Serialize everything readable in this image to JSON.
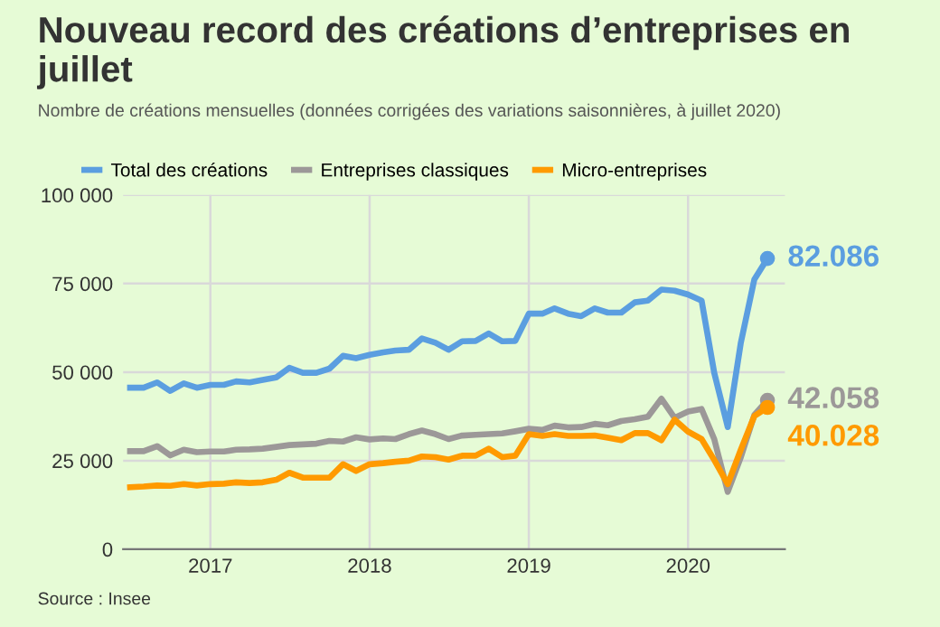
{
  "chart_data": {
    "type": "line",
    "title": "Nouveau record des créations d’entreprises en juillet",
    "subtitle": "Nombre de créations mensuelles (données corrigées des variations saisonnières, à juillet 2020)",
    "x": [
      "2016-07",
      "2016-08",
      "2016-09",
      "2016-10",
      "2016-11",
      "2016-12",
      "2017-01",
      "2017-02",
      "2017-03",
      "2017-04",
      "2017-05",
      "2017-06",
      "2017-07",
      "2017-08",
      "2017-09",
      "2017-10",
      "2017-11",
      "2017-12",
      "2018-01",
      "2018-02",
      "2018-03",
      "2018-04",
      "2018-05",
      "2018-06",
      "2018-07",
      "2018-08",
      "2018-09",
      "2018-10",
      "2018-11",
      "2018-12",
      "2019-01",
      "2019-02",
      "2019-03",
      "2019-04",
      "2019-05",
      "2019-06",
      "2019-07",
      "2019-08",
      "2019-09",
      "2019-10",
      "2019-11",
      "2019-12",
      "2020-01",
      "2020-02",
      "2020-03",
      "2020-04",
      "2020-05",
      "2020-06",
      "2020-07"
    ],
    "series": [
      {
        "name": "Total des créations",
        "color": "#5b9ee0",
        "values": [
          45600,
          45600,
          47100,
          44700,
          46800,
          45600,
          46400,
          46400,
          47400,
          47100,
          47800,
          48500,
          51200,
          49800,
          49800,
          51000,
          54600,
          53900,
          54900,
          55600,
          56100,
          56300,
          59500,
          58300,
          56300,
          58700,
          58800,
          60900,
          58700,
          58800,
          66500,
          66500,
          68000,
          66500,
          65800,
          68000,
          66800,
          66800,
          69700,
          70200,
          73300,
          73000,
          71900,
          70200,
          49800,
          34500,
          58300,
          76200,
          82086
        ],
        "value_labels": [
          null,
          null,
          null,
          null,
          null,
          null,
          null,
          null,
          null,
          null,
          null,
          null,
          null,
          null,
          null,
          null,
          null,
          null,
          null,
          null,
          null,
          null,
          null,
          null,
          null,
          null,
          null,
          null,
          null,
          null,
          null,
          null,
          null,
          null,
          null,
          null,
          null,
          null,
          null,
          null,
          null,
          null,
          null,
          null,
          null,
          null,
          null,
          null,
          "82.086"
        ]
      },
      {
        "name": "Entreprises classiques",
        "color": "#9c9898",
        "values": [
          27700,
          27700,
          29100,
          26500,
          28100,
          27400,
          27600,
          27600,
          28100,
          28200,
          28400,
          28900,
          29400,
          29600,
          29800,
          30600,
          30400,
          31600,
          31000,
          31300,
          31100,
          32500,
          33500,
          32500,
          31100,
          32100,
          32300,
          32500,
          32700,
          33300,
          34000,
          33700,
          34900,
          34400,
          34500,
          35400,
          35000,
          36200,
          36700,
          37400,
          42500,
          37100,
          38900,
          39600,
          31100,
          16200,
          26000,
          37900,
          42058
        ],
        "value_labels": [
          null,
          null,
          null,
          null,
          null,
          null,
          null,
          null,
          null,
          null,
          null,
          null,
          null,
          null,
          null,
          null,
          null,
          null,
          null,
          null,
          null,
          null,
          null,
          null,
          null,
          null,
          null,
          null,
          null,
          null,
          null,
          null,
          null,
          null,
          null,
          null,
          null,
          null,
          null,
          null,
          null,
          null,
          null,
          null,
          null,
          null,
          null,
          null,
          "42.058"
        ]
      },
      {
        "name": "Micro-entreprises",
        "color": "#ff9a00",
        "values": [
          17500,
          17700,
          18000,
          17900,
          18400,
          18000,
          18400,
          18500,
          18900,
          18700,
          18900,
          19600,
          21600,
          20200,
          20200,
          20200,
          24000,
          22100,
          24000,
          24300,
          24700,
          25000,
          26200,
          26000,
          25300,
          26400,
          26400,
          28400,
          26000,
          26400,
          32500,
          32000,
          32500,
          32000,
          32000,
          32100,
          31500,
          30800,
          32800,
          32800,
          30800,
          36600,
          33200,
          31100,
          25200,
          18400,
          28100,
          37600,
          40028
        ],
        "value_labels": [
          null,
          null,
          null,
          null,
          null,
          null,
          null,
          null,
          null,
          null,
          null,
          null,
          null,
          null,
          null,
          null,
          null,
          null,
          null,
          null,
          null,
          null,
          null,
          null,
          null,
          null,
          null,
          null,
          null,
          null,
          null,
          null,
          null,
          null,
          null,
          null,
          null,
          null,
          null,
          null,
          null,
          null,
          null,
          null,
          null,
          null,
          null,
          null,
          "40.028"
        ]
      }
    ],
    "xlim": [
      "2016-06-15",
      "2020-08-10"
    ],
    "xticks": [
      {
        "value": "2017-01-01",
        "label": "2017"
      },
      {
        "value": "2018-01-01",
        "label": "2018"
      },
      {
        "value": "2019-01-01",
        "label": "2019"
      },
      {
        "value": "2020-01-01",
        "label": "2020"
      }
    ],
    "ylim": [
      0,
      100000
    ],
    "yticks": [
      {
        "value": 0,
        "label": "0"
      },
      {
        "value": 25000,
        "label": "25 000"
      },
      {
        "value": 50000,
        "label": "50 000"
      },
      {
        "value": 75000,
        "label": "75 000"
      },
      {
        "value": 100000,
        "label": "100 000"
      }
    ],
    "grid": true,
    "legend": "top",
    "marker": "none",
    "line_style": "solid",
    "annotations": [
      "Source : Insee"
    ]
  }
}
